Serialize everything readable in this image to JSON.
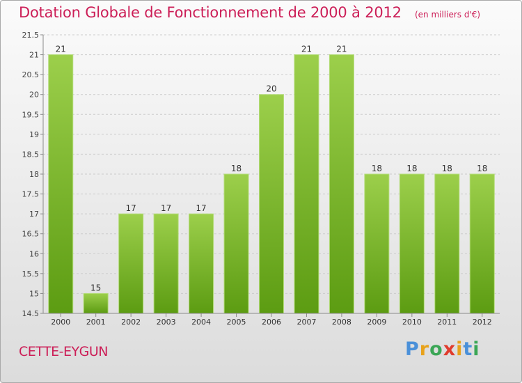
{
  "header": {
    "title": "Dotation Globale de Fonctionnement de 2000 à 2012",
    "subtitle": "(en milliers d'€)"
  },
  "commune": "CETTE-EYGUN",
  "brand": {
    "letters": [
      {
        "char": "P",
        "color": "#4a90d9"
      },
      {
        "char": "r",
        "color": "#e8a21b"
      },
      {
        "char": "o",
        "color": "#3aa655"
      },
      {
        "char": "x",
        "color": "#e03c2d"
      },
      {
        "char": "i",
        "color": "#e8a21b"
      },
      {
        "char": "t",
        "color": "#4a90d9"
      },
      {
        "char": "i",
        "color": "#3aa655"
      }
    ]
  },
  "colors": {
    "title": "#cc1e57",
    "bar_top": "#9ccf4b",
    "bar_bottom": "#5c9c12",
    "grid": "#cccccc",
    "axis": "#8a8a8a"
  },
  "chart_data": {
    "type": "bar",
    "categories": [
      "2000",
      "2001",
      "2002",
      "2003",
      "2004",
      "2005",
      "2006",
      "2007",
      "2008",
      "2009",
      "2010",
      "2011",
      "2012"
    ],
    "values": [
      21,
      15,
      17,
      17,
      17,
      18,
      20,
      21,
      21,
      18,
      18,
      18,
      18
    ],
    "data_labels": [
      "21",
      "15",
      "17",
      "17",
      "17",
      "18",
      "20",
      "21",
      "21",
      "18",
      "18",
      "18",
      "18"
    ],
    "ylim": [
      14.5,
      21.5
    ],
    "yticks": [
      14.5,
      15,
      15.5,
      16,
      16.5,
      17,
      17.5,
      18,
      18.5,
      19,
      19.5,
      20,
      20.5,
      21,
      21.5
    ],
    "ytick_labels": [
      "14.5",
      "15",
      "15.5",
      "16",
      "16.5",
      "17",
      "17.5",
      "18",
      "18.5",
      "19",
      "19.5",
      "20",
      "20.5",
      "21",
      "21.5"
    ],
    "grid": "horizontal dashed"
  }
}
